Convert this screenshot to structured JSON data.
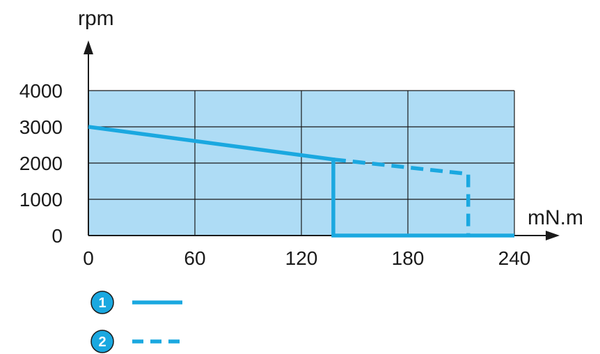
{
  "chart_data": {
    "type": "line",
    "xlabel": "mN.m",
    "ylabel": "rpm",
    "xlim": [
      0,
      240
    ],
    "ylim": [
      0,
      4000
    ],
    "x_ticks": [
      "0",
      "60",
      "120",
      "180",
      "240"
    ],
    "y_ticks": [
      "0",
      "1000",
      "2000",
      "3000",
      "4000"
    ],
    "grid": true,
    "legend_position": "bottom-left",
    "colors": {
      "area": "#aedcf5",
      "line": "#1aa8e0",
      "grid": "#1a1a1a"
    },
    "series": [
      {
        "name": "1",
        "style": "solid",
        "x": [
          0,
          138,
          138,
          240
        ],
        "y": [
          3000,
          2100,
          0,
          0
        ]
      },
      {
        "name": "2",
        "style": "dashed",
        "x": [
          138,
          214,
          214
        ],
        "y": [
          2100,
          1700,
          0
        ]
      }
    ]
  }
}
